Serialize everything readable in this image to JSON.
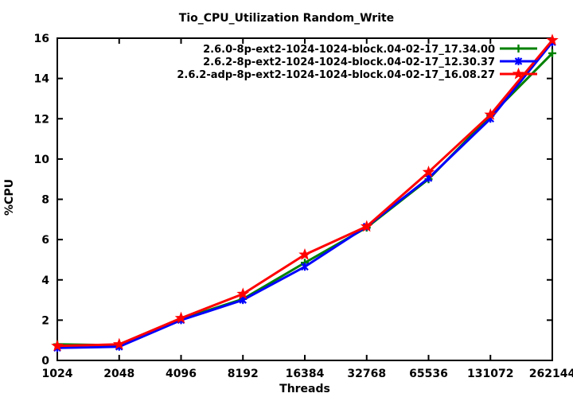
{
  "window": {
    "title": "Tio_CPU_Utilization Random_Write"
  },
  "chart_data": {
    "type": "line",
    "title": "Tio_CPU_Utilization Random_Write",
    "xlabel": "Threads",
    "ylabel": "%CPU",
    "categories": [
      "1024",
      "2048",
      "4096",
      "8192",
      "16384",
      "32768",
      "65536",
      "131072",
      "262144"
    ],
    "x_scale": "log2-categorical",
    "y_ticks": [
      "0",
      "2",
      "4",
      "6",
      "8",
      "10",
      "12",
      "14",
      "16"
    ],
    "ylim": [
      0,
      16
    ],
    "grid": false,
    "legend_position": "top-right-inside",
    "axis_color": "#000000",
    "background_color": "#ffffff",
    "series": [
      {
        "name": "2.6.0-8p-ext2-1024-1024-block.04-02-17_17.34.00",
        "color": "#008000",
        "marker": "plus",
        "values": [
          0.8,
          0.75,
          2.05,
          3.05,
          4.85,
          6.6,
          9.0,
          12.15,
          15.25
        ]
      },
      {
        "name": "2.6.2-8p-ext2-1024-1024-block.04-02-17_12.30.37",
        "color": "#0000ff",
        "marker": "asterisk",
        "values": [
          0.62,
          0.68,
          2.0,
          3.0,
          4.65,
          6.65,
          9.05,
          12.0,
          15.8
        ]
      },
      {
        "name": "2.6.2-adp-8p-ext2-1024-1024-block.04-02-17_16.08.27",
        "color": "#ff0000",
        "marker": "star",
        "values": [
          0.72,
          0.8,
          2.1,
          3.3,
          5.25,
          6.65,
          9.35,
          12.2,
          15.9
        ]
      }
    ]
  }
}
